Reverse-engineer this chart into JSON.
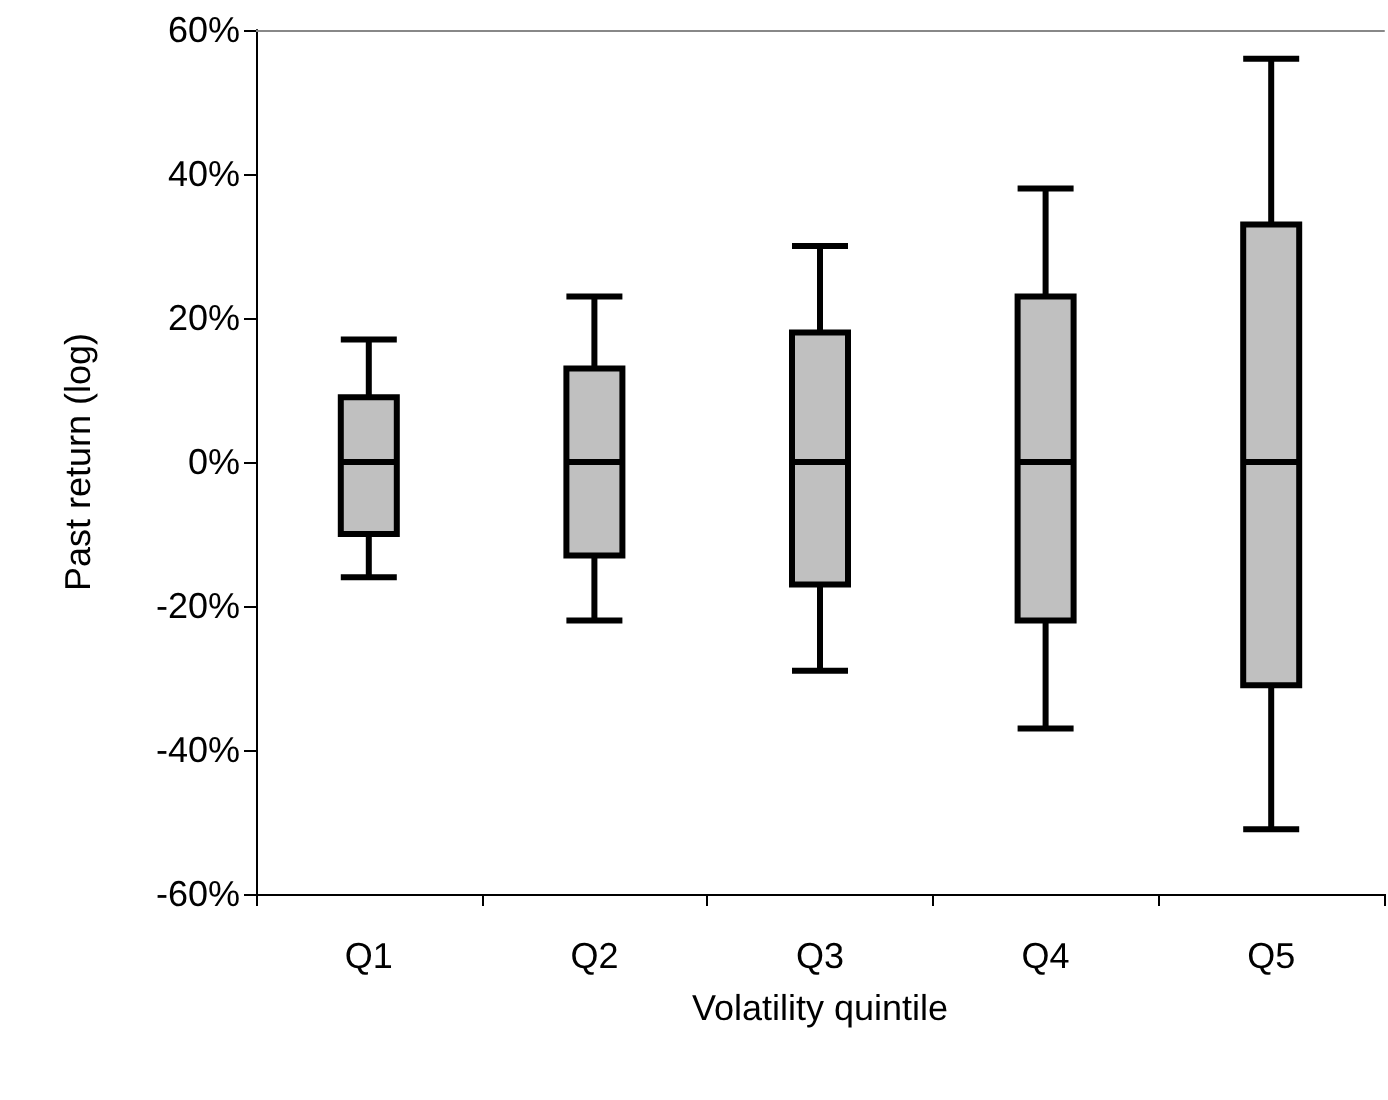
{
  "chart_data": {
    "type": "box",
    "xlabel": "Volatility quintile",
    "ylabel": "Past return (log)",
    "categories": [
      "Q1",
      "Q2",
      "Q3",
      "Q4",
      "Q5"
    ],
    "boxes": [
      {
        "low": -16,
        "q1": -10,
        "median": 0,
        "q3": 9,
        "high": 17
      },
      {
        "low": -22,
        "q1": -13,
        "median": 0,
        "q3": 13,
        "high": 23
      },
      {
        "low": -29,
        "q1": -17,
        "median": 0,
        "q3": 18,
        "high": 30
      },
      {
        "low": -37,
        "q1": -22,
        "median": 0,
        "q3": 23,
        "high": 38
      },
      {
        "low": -51,
        "q1": -31,
        "median": 0,
        "q3": 33,
        "high": 56
      }
    ],
    "color": "#c0c0c0",
    "ylim": [
      -60,
      60
    ],
    "yticks": [
      {
        "value": -60,
        "label": "-60%"
      },
      {
        "value": -40,
        "label": "-40%"
      },
      {
        "value": -20,
        "label": "-20%"
      },
      {
        "value": 0,
        "label": "0%"
      },
      {
        "value": 20,
        "label": "20%"
      },
      {
        "value": 40,
        "label": "40%"
      },
      {
        "value": 60,
        "label": "60%"
      }
    ],
    "grid": false
  }
}
